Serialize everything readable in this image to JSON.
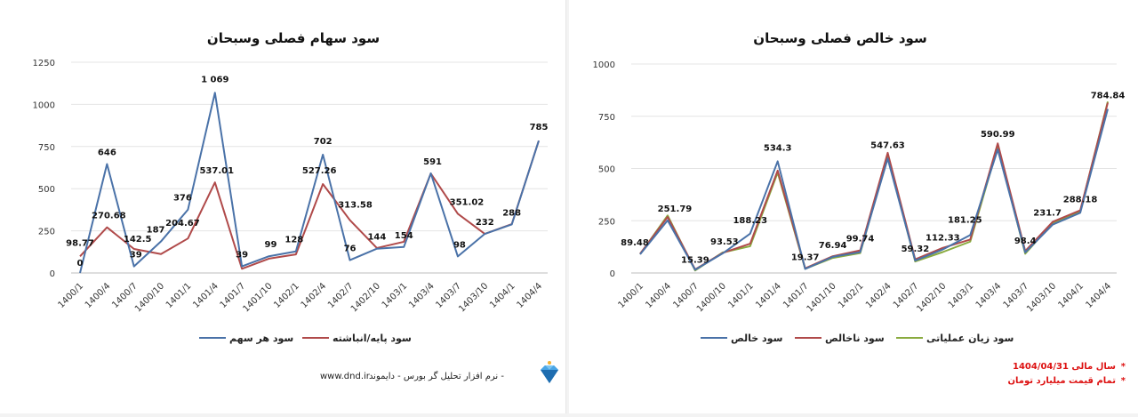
{
  "footer": {
    "website": "www.dnd.ir",
    "brand_text": "نرم افزار تحلیل گر بورس - دایموند -",
    "logo_icon": "diamond-icon"
  },
  "notes": {
    "bullet": "*",
    "fiscal_year": "سال مالی 1404/04/31",
    "units": "تمام قیمت میلیارد تومان"
  },
  "chart_data": [
    {
      "type": "line",
      "title": "سود سهام فصلی وسبحان",
      "categories": [
        "1400/1",
        "1400/4",
        "1400/7",
        "1400/10",
        "1401/1",
        "1401/4",
        "1401/7",
        "1401/10",
        "1402/1",
        "1402/4",
        "1402/7",
        "1402/10",
        "1403/1",
        "1403/4",
        "1403/7",
        "1403/10",
        "1404/1",
        "1404/4"
      ],
      "ylim": [
        0,
        1250
      ],
      "yticks": [
        0,
        250,
        500,
        750,
        1000,
        1250
      ],
      "ytick_labels": [
        "0",
        "250",
        "500",
        "750",
        "1000",
        "1250"
      ],
      "grid": true,
      "legend_position": "bottom",
      "series": [
        {
          "name": "سود هر سهم",
          "color": "#4a72a8",
          "values": [
            0,
            646,
            39,
            187,
            376,
            1069,
            39,
            99,
            128,
            702,
            76,
            144,
            154,
            591,
            98,
            232,
            288,
            785
          ],
          "labels": [
            "0",
            "646",
            "39",
            "187",
            "376",
            "1 069",
            "39",
            "99",
            "128",
            "702",
            "76",
            "144",
            "154",
            "591",
            "98",
            "232",
            "288",
            "785"
          ],
          "label_position": "above"
        },
        {
          "name": "سود پایه/انباشته",
          "color": "#b04a4a",
          "values": [
            98.77,
            270.68,
            142.5,
            112,
            204.67,
            537.01,
            25,
            85,
            110,
            527.26,
            313.58,
            148,
            185,
            590,
            351.02,
            232,
            290,
            785
          ],
          "labels": [
            "98.77",
            "270.68",
            "142.5",
            null,
            "204.67",
            "537.01",
            null,
            null,
            null,
            "527.26",
            "313.58",
            null,
            null,
            null,
            "351.02",
            null,
            null,
            null
          ],
          "label_position": "above"
        }
      ]
    },
    {
      "type": "line",
      "title": "سود خالص فصلی وسبحان",
      "categories": [
        "1400/1",
        "1400/4",
        "1400/7",
        "1400/10",
        "1401/1",
        "1401/4",
        "1401/7",
        "1401/10",
        "1402/1",
        "1402/4",
        "1402/7",
        "1402/10",
        "1403/1",
        "1403/4",
        "1403/7",
        "1403/10",
        "1404/1",
        "1404/4"
      ],
      "ylim": [
        0,
        1000
      ],
      "yticks": [
        0,
        250,
        500,
        750,
        1000
      ],
      "ytick_labels": [
        "0",
        "250",
        "500",
        "750",
        "1000"
      ],
      "grid": true,
      "legend_position": "bottom",
      "series": [
        {
          "name": "سود خالص",
          "color": "#4a72a8",
          "values": [
            89.48,
            251.79,
            15.39,
            93.53,
            188.23,
            534.3,
            19.37,
            76.94,
            99.74,
            547.63,
            59.32,
            112.33,
            181.25,
            590.99,
            98.4,
            231.7,
            288.18,
            784.84
          ],
          "labels": [
            "89.48",
            "251.79",
            "15.39",
            "93.53",
            "188.23",
            "534.3",
            "19.37",
            "76.94",
            "99.74",
            "547.63",
            "59.32",
            "112.33",
            "181.25",
            "590.99",
            "98.4",
            "231.7",
            "288.18",
            "784.84"
          ],
          "label_position": "above"
        },
        {
          "name": "سود ناخالص",
          "color": "#b04a4a",
          "values": [
            92,
            268,
            17,
            96,
            140,
            490,
            22,
            80,
            108,
            575,
            65,
            120,
            160,
            620,
            105,
            245,
            300,
            815
          ],
          "labels": null
        },
        {
          "name": "سود زیان عملیاتی",
          "color": "#8aab3f",
          "values": [
            90,
            275,
            12,
            98,
            128,
            480,
            20,
            72,
            95,
            560,
            55,
            100,
            150,
            605,
            92,
            240,
            295,
            820
          ],
          "labels": null
        }
      ]
    }
  ]
}
